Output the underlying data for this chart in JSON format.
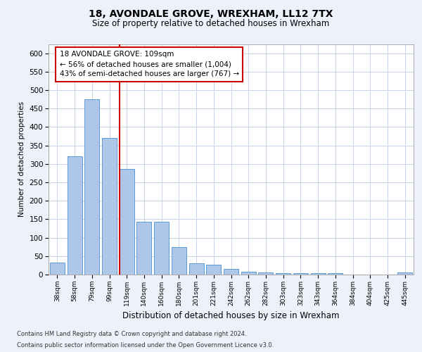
{
  "title1": "18, AVONDALE GROVE, WREXHAM, LL12 7TX",
  "title2": "Size of property relative to detached houses in Wrexham",
  "xlabel": "Distribution of detached houses by size in Wrexham",
  "ylabel": "Number of detached properties",
  "categories": [
    "38sqm",
    "58sqm",
    "79sqm",
    "99sqm",
    "119sqm",
    "140sqm",
    "160sqm",
    "180sqm",
    "201sqm",
    "221sqm",
    "242sqm",
    "262sqm",
    "282sqm",
    "303sqm",
    "323sqm",
    "343sqm",
    "364sqm",
    "384sqm",
    "404sqm",
    "425sqm",
    "445sqm"
  ],
  "values": [
    32,
    320,
    475,
    370,
    287,
    143,
    143,
    75,
    30,
    27,
    15,
    8,
    5,
    4,
    4,
    4,
    4,
    0,
    0,
    0,
    5
  ],
  "bar_color": "#aec6e8",
  "bar_edge_color": "#5b9bd5",
  "vline_x": 3.58,
  "vline_color": "#cc0000",
  "annotation_text": "18 AVONDALE GROVE: 109sqm\n← 56% of detached houses are smaller (1,004)\n43% of semi-detached houses are larger (767) →",
  "annotation_box_color": "#ffffff",
  "annotation_box_edge_color": "#cc0000",
  "ylim": [
    0,
    625
  ],
  "yticks": [
    0,
    50,
    100,
    150,
    200,
    250,
    300,
    350,
    400,
    450,
    500,
    550,
    600
  ],
  "footer1": "Contains HM Land Registry data © Crown copyright and database right 2024.",
  "footer2": "Contains public sector information licensed under the Open Government Licence v3.0.",
  "bg_color": "#edf2fa",
  "plot_bg_color": "#ffffff",
  "grid_color": "#c8d4e8"
}
